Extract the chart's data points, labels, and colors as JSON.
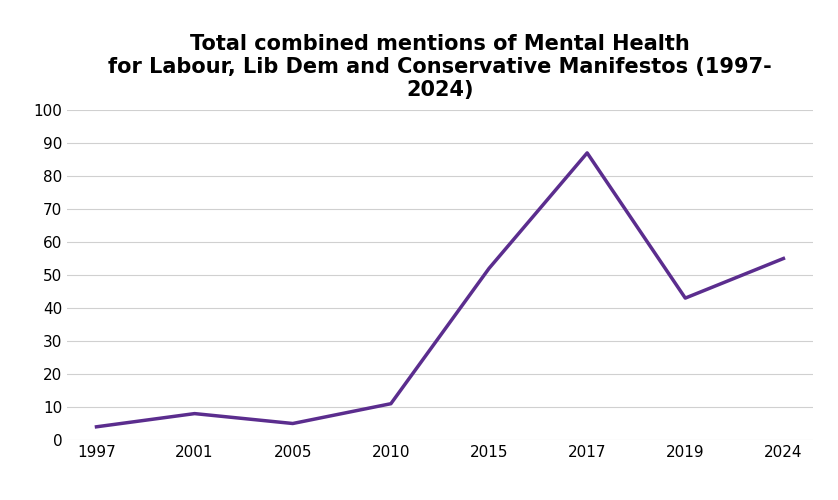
{
  "title": "Total combined mentions of Mental Health\nfor Labour, Lib Dem and Conservative Manifestos (1997-\n2024)",
  "x_positions": [
    0,
    1,
    2,
    3,
    4,
    5,
    6,
    7
  ],
  "y": [
    4,
    8,
    5,
    11,
    52,
    87,
    43,
    55
  ],
  "line_color": "#5B2D8E",
  "line_width": 2.5,
  "ylim": [
    0,
    100
  ],
  "yticks": [
    0,
    10,
    20,
    30,
    40,
    50,
    60,
    70,
    80,
    90,
    100
  ],
  "xtick_labels": [
    "1997",
    "2001",
    "2005",
    "2010",
    "2015",
    "2017",
    "2019",
    "2024"
  ],
  "background_color": "#ffffff",
  "grid_color": "#d0d0d0",
  "title_fontsize": 15,
  "title_fontweight": "bold",
  "tick_fontsize": 11
}
